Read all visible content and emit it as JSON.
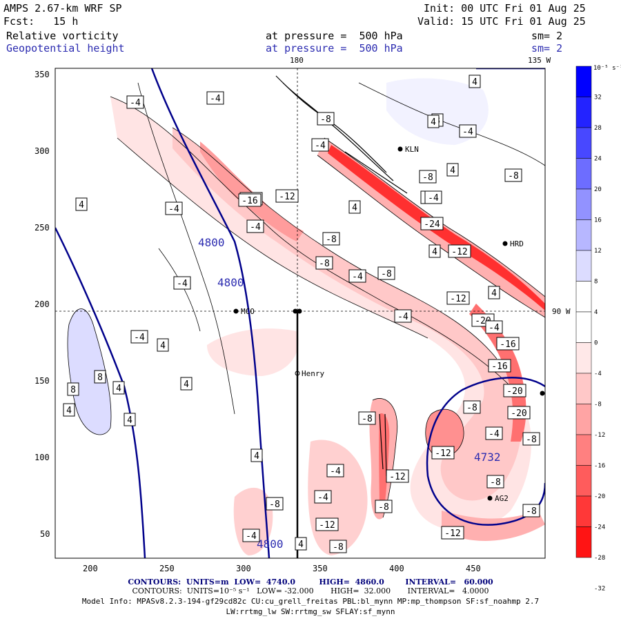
{
  "header": {
    "model": "AMPS 2.67-km WRF SP",
    "init": "Init: 00 UTC Fri 01 Aug 25",
    "fcst": "Fcst:   15 h",
    "valid": "Valid: 15 UTC Fri 01 Aug 25",
    "field1": "Relative vorticity",
    "field1_level": "at pressure =  500 hPa",
    "field1_sm": "sm= 2",
    "field2": "Geopotential height",
    "field2_level": "at pressure =  500 hPa",
    "field2_sm": "sm= 2"
  },
  "map_labels": {
    "lon_180": "180",
    "lon_135w": "135 W",
    "lon_90w": "90 W",
    "stations": [
      "KLN",
      "HRD",
      "MCO",
      "Henry",
      "AG2"
    ]
  },
  "axes": {
    "x_ticks": [
      "200",
      "250",
      "300",
      "350",
      "400",
      "450"
    ],
    "y_ticks": [
      "350",
      "300",
      "250",
      "200",
      "150",
      "100",
      "50"
    ]
  },
  "colorbar": {
    "unit": "10⁻⁵ s⁻¹",
    "levels": [
      "32",
      "28",
      "24",
      "20",
      "16",
      "12",
      "8",
      "4",
      "0",
      "-4",
      "-8",
      "-12",
      "-16",
      "-20",
      "-24",
      "-28",
      "-32"
    ],
    "colors": [
      "#0000ff",
      "#2323ff",
      "#4848ff",
      "#6d6dff",
      "#9292ff",
      "#b7b7ff",
      "#dcdcff",
      "#ffffff",
      "#ffffff",
      "#ffe8e8",
      "#ffc8c8",
      "#ffa4a4",
      "#ff8080",
      "#ff5c5c",
      "#ff3838",
      "#ff1414"
    ]
  },
  "height_labels": [
    "4800",
    "4800",
    "4732",
    "4800"
  ],
  "vort_labels": [
    "-4",
    "-4",
    "4",
    "-4",
    "-16",
    "-12",
    "-4",
    "-8",
    "-8",
    "-4",
    "-8",
    "-12",
    "-20",
    "-16",
    "-16",
    "-20",
    "-20",
    "-8",
    "-4",
    "-12",
    "-8",
    "-12",
    "-8",
    "-4",
    "-4",
    "-12",
    "-12",
    "-8",
    "8",
    "4",
    "8",
    "4",
    "4",
    "4",
    "-4",
    "-4",
    "4",
    "4",
    "-8",
    "-4",
    "-4",
    "-24",
    "4",
    "-8",
    "4",
    "-4",
    "-8",
    "4",
    "-16",
    "-8",
    "-4",
    "8",
    "4",
    "-4",
    "-12",
    "-8",
    "4",
    "-4",
    "-4",
    "-8",
    "4",
    "4",
    "-8"
  ],
  "footer": {
    "line1": "CONTOURS:  UNITS=m  LOW=  4740.0         HIGH=  4860.0        INTERVAL=   60.000",
    "line2": "CONTOURS:  UNITS=10⁻⁵ s⁻¹   LOW= -32.000       HIGH=  32.000       INTERVAL=   4.0000",
    "line3": "Model Info: MPASv8.2.3-194-gf29cd82c CU:cu_grell_freitas PBL:bl_mynn MP:mp_thompson SF:sf_noahmp 2.7",
    "line4": "LW:rrtmg_lw SW:rrtmg_sw SFLAY:sf_mynn"
  }
}
